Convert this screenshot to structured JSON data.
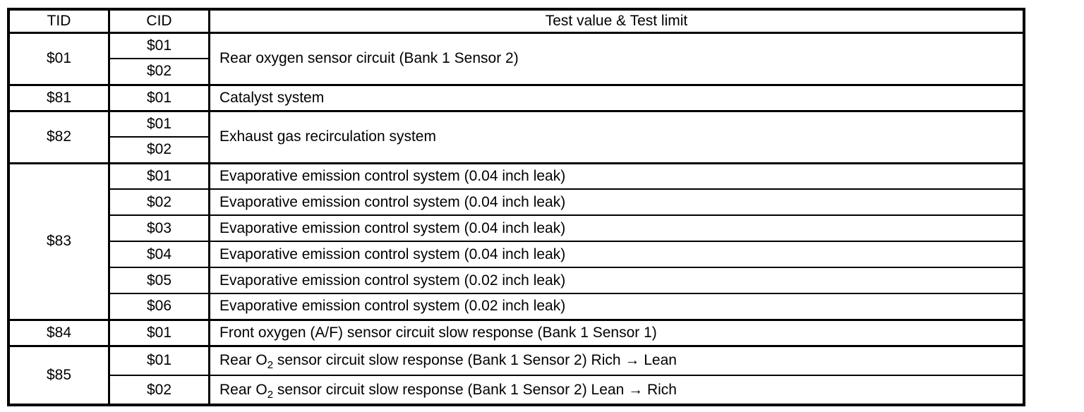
{
  "colors": {
    "background": "#ffffff",
    "border": "#000000",
    "text": "#000000"
  },
  "table": {
    "header": {
      "tid": "TID",
      "cid": "CID",
      "test": "Test value & Test limit"
    },
    "groups": [
      {
        "tid": "$01",
        "cids": [
          "$01",
          "$02"
        ],
        "desc": "Rear oxygen sensor circuit (Bank 1 Sensor 2)"
      },
      {
        "tid": "$81",
        "cids": [
          "$01"
        ],
        "desc": "Catalyst system"
      },
      {
        "tid": "$82",
        "cids": [
          "$01",
          "$02"
        ],
        "desc": "Exhaust gas recirculation system"
      },
      {
        "tid": "$83",
        "cids": [
          "$01",
          "$02",
          "$03",
          "$04",
          "$05",
          "$06"
        ],
        "descs": [
          "Evaporative emission control system (0.04 inch leak)",
          "Evaporative emission control system (0.04 inch leak)",
          "Evaporative emission control system (0.04 inch leak)",
          "Evaporative emission control system (0.04 inch leak)",
          "Evaporative emission control system (0.02 inch leak)",
          "Evaporative emission control system (0.02 inch leak)"
        ]
      },
      {
        "tid": "$84",
        "cids": [
          "$01"
        ],
        "desc": "Front oxygen (A/F) sensor circuit slow response (Bank 1 Sensor 1)"
      },
      {
        "tid": "$85",
        "cids": [
          "$01",
          "$02"
        ],
        "rows": [
          {
            "prefix": "Rear O",
            "sub": "2",
            "suffix": " sensor circuit slow response (Bank 1 Sensor 2) Rich → Lean"
          },
          {
            "prefix": "Rear O",
            "sub": "2",
            "suffix": " sensor circuit slow response (Bank 1 Sensor 2) Lean → Rich"
          }
        ]
      }
    ]
  }
}
